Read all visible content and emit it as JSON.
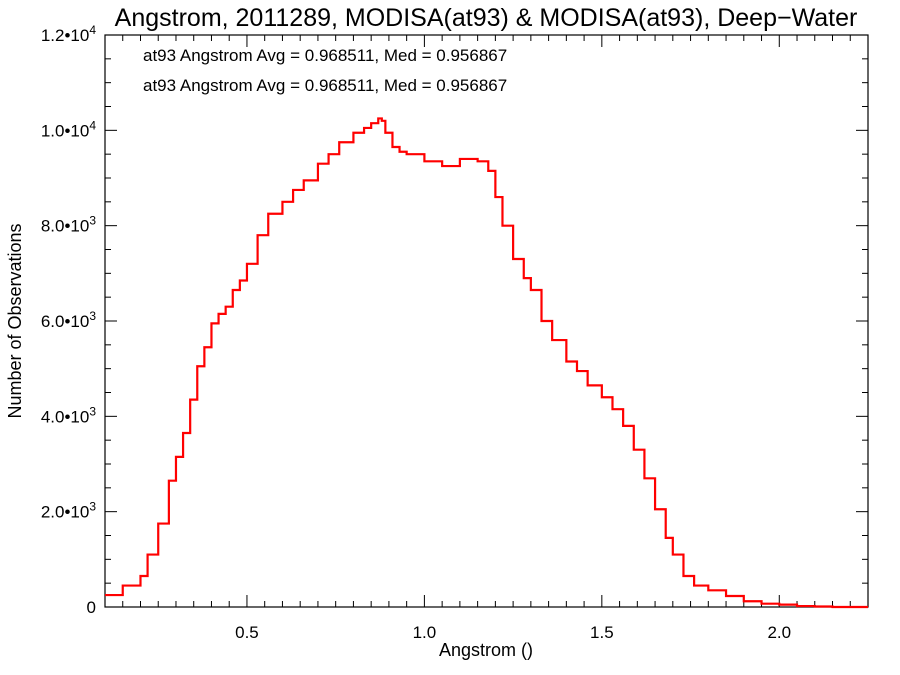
{
  "chart_data": {
    "type": "line",
    "title": "Angstrom, 2011289, MODISA(at93) & MODISA(at93), Deep−Water",
    "xlabel": "Angstrom ()",
    "ylabel": "Number of Observations",
    "xlim": [
      0.1,
      2.25
    ],
    "ylim": [
      0,
      12000
    ],
    "x_ticks": [
      0.5,
      1.0,
      1.5,
      2.0
    ],
    "x_tick_labels": [
      "0.5",
      "1.0",
      "1.5",
      "2.0"
    ],
    "y_ticks": [
      0,
      2000,
      4000,
      6000,
      8000,
      10000,
      12000
    ],
    "y_tick_labels": [
      {
        "mantissa": "0",
        "exponent": ""
      },
      {
        "mantissa": "2.0•10",
        "exponent": "3"
      },
      {
        "mantissa": "4.0•10",
        "exponent": "3"
      },
      {
        "mantissa": "6.0•10",
        "exponent": "3"
      },
      {
        "mantissa": "8.0•10",
        "exponent": "3"
      },
      {
        "mantissa": "1.0•10",
        "exponent": "4"
      },
      {
        "mantissa": "1.2•10",
        "exponent": "4"
      }
    ],
    "grid": false,
    "legend_position": "top-left",
    "annotations": [
      {
        "text": "at93 Angstrom Avg = 0.968511, Med = 0.956867",
        "color": "#000000"
      },
      {
        "text": "at93 Angstrom Avg = 0.968511, Med = 0.956867",
        "color": "#ff0000"
      }
    ],
    "series": [
      {
        "color": "#ff0000",
        "step": true,
        "x": [
          0.1,
          0.15,
          0.2,
          0.22,
          0.25,
          0.28,
          0.3,
          0.32,
          0.34,
          0.36,
          0.38,
          0.4,
          0.42,
          0.44,
          0.46,
          0.48,
          0.5,
          0.53,
          0.56,
          0.6,
          0.63,
          0.66,
          0.7,
          0.73,
          0.76,
          0.8,
          0.83,
          0.85,
          0.87,
          0.88,
          0.89,
          0.91,
          0.93,
          0.95,
          1.0,
          1.05,
          1.1,
          1.15,
          1.18,
          1.2,
          1.22,
          1.25,
          1.28,
          1.3,
          1.33,
          1.36,
          1.4,
          1.43,
          1.46,
          1.5,
          1.53,
          1.56,
          1.59,
          1.62,
          1.65,
          1.68,
          1.7,
          1.73,
          1.76,
          1.8,
          1.85,
          1.9,
          1.95,
          2.0,
          2.05,
          2.1,
          2.15,
          2.25
        ],
        "y": [
          250,
          450,
          650,
          1100,
          1750,
          2650,
          3150,
          3650,
          4350,
          5050,
          5450,
          5950,
          6150,
          6300,
          6650,
          6850,
          7200,
          7800,
          8250,
          8500,
          8750,
          8950,
          9300,
          9500,
          9750,
          9950,
          10050,
          10150,
          10250,
          10200,
          9950,
          9650,
          9550,
          9500,
          9350,
          9250,
          9400,
          9350,
          9150,
          8600,
          8000,
          7300,
          6900,
          6650,
          6000,
          5600,
          5150,
          4950,
          4650,
          4400,
          4150,
          3800,
          3300,
          2700,
          2050,
          1450,
          1100,
          650,
          450,
          350,
          230,
          120,
          70,
          50,
          20,
          10,
          0,
          0
        ]
      }
    ]
  }
}
